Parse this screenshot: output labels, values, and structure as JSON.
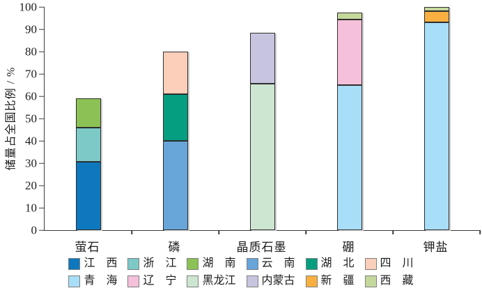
{
  "chart_data": {
    "type": "bar",
    "stacked": true,
    "title": "",
    "xlabel": "",
    "ylabel": "储量占全国比例 / %",
    "ylim": [
      0,
      100
    ],
    "ytick_interval": 10,
    "grid": false,
    "legend_position": "bottom",
    "legend_rows": 2,
    "categories": [
      "萤石",
      "磷",
      "晶质石墨",
      "硼",
      "钾盐"
    ],
    "series": [
      {
        "name": "江西",
        "label": "江　西",
        "color": "#0d78be",
        "values": [
          30.5,
          0,
          0,
          0,
          0
        ]
      },
      {
        "name": "浙江",
        "label": "浙　江",
        "color": "#7cc9c8",
        "values": [
          15.5,
          0,
          0,
          0,
          0
        ]
      },
      {
        "name": "湖南",
        "label": "湖　南",
        "color": "#8cc255",
        "values": [
          13,
          0,
          0,
          0,
          0
        ]
      },
      {
        "name": "云南",
        "label": "云　南",
        "color": "#68a5d9",
        "values": [
          0,
          40,
          0,
          0,
          0
        ]
      },
      {
        "name": "湖北",
        "label": "湖　北",
        "color": "#069e80",
        "values": [
          0,
          21,
          0,
          0,
          0
        ]
      },
      {
        "name": "四川",
        "label": "四　川",
        "color": "#fbcfb9",
        "values": [
          0,
          19,
          0,
          0,
          0
        ]
      },
      {
        "name": "青海",
        "label": "青　海",
        "color": "#a8def7",
        "values": [
          0,
          0,
          0,
          65,
          93
        ]
      },
      {
        "name": "辽宁",
        "label": "辽　宁",
        "color": "#f5c0da",
        "values": [
          0,
          0,
          0,
          29.5,
          0
        ]
      },
      {
        "name": "黑龙江",
        "label": "黑龙江",
        "color": "#cde6d1",
        "values": [
          0,
          0,
          65.5,
          0,
          0
        ]
      },
      {
        "name": "内蒙古",
        "label": "内蒙古",
        "color": "#c7c4e0",
        "values": [
          0,
          0,
          23,
          0,
          0
        ]
      },
      {
        "name": "新疆",
        "label": "新　疆",
        "color": "#f9b040",
        "values": [
          0,
          0,
          0,
          0,
          5
        ]
      },
      {
        "name": "西藏",
        "label": "西　藏",
        "color": "#c5d89c",
        "values": [
          0,
          0,
          0,
          3,
          2
        ]
      }
    ],
    "totals": [
      59,
      80,
      88.5,
      97.5,
      100
    ]
  }
}
